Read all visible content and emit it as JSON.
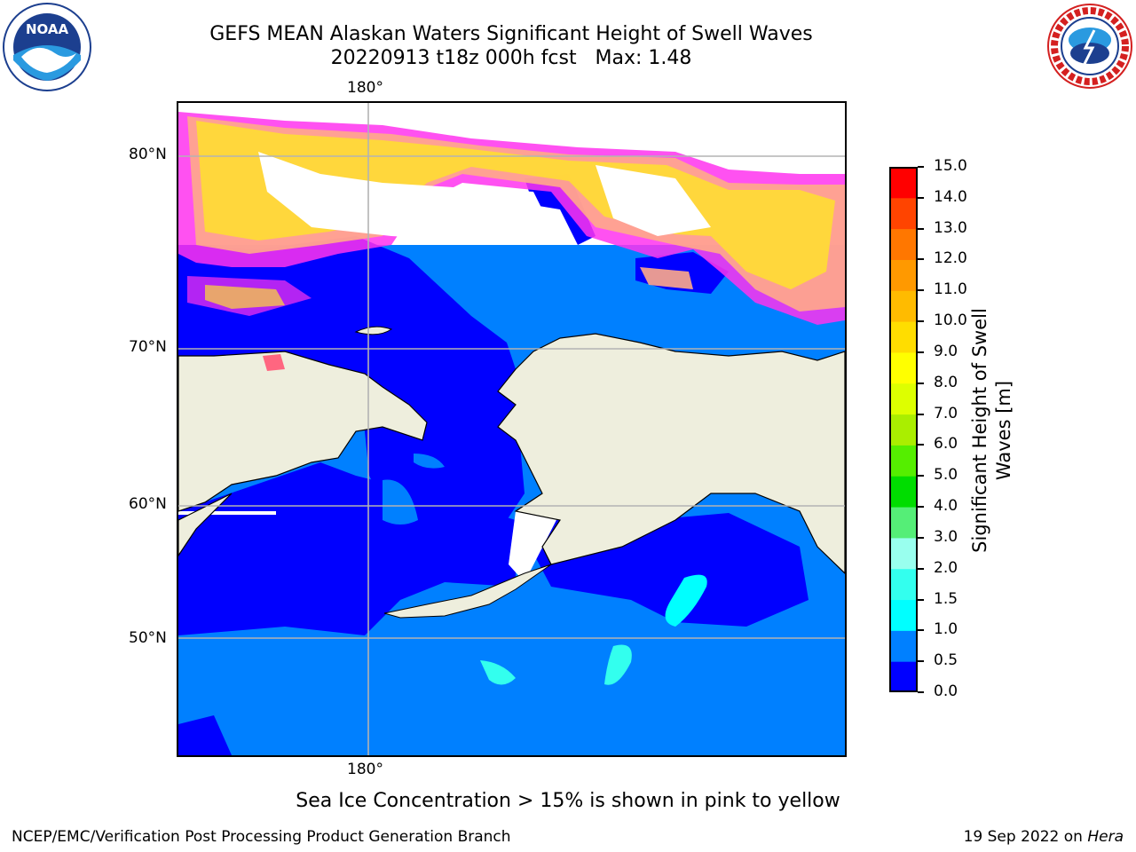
{
  "title": {
    "line1": "GEFS MEAN Alaskan Waters Significant Height of Swell Waves",
    "line2": "20220913 t18z 000h fcst   Max: 1.48"
  },
  "logos": {
    "left": "noaa-logo",
    "right": "national-weather-service-logo",
    "right_text": "NATIONAL WEATHER SERVICE"
  },
  "map": {
    "lon_labels": [
      "180°",
      "180°"
    ],
    "lat_labels": [
      "80°N",
      "70°N",
      "60°N",
      "50°N"
    ],
    "colors": {
      "land": "#eeeedd",
      "ice_low": "#ff33ee",
      "ice_mid": "#ffaa88",
      "ice_high": "#ffdd33",
      "gridline": "#b3b3b3"
    }
  },
  "colorbar": {
    "label": "Significant Height of Swell Waves [m]",
    "ticks": [
      "0.0",
      "0.5",
      "1.0",
      "1.5",
      "2.0",
      "3.0",
      "4.0",
      "5.0",
      "6.0",
      "7.0",
      "8.0",
      "9.0",
      "10.0",
      "11.0",
      "12.0",
      "13.0",
      "14.0",
      "15.0"
    ],
    "colors": [
      "#0000ff",
      "#0080ff",
      "#00ffff",
      "#33ffee",
      "#99ffee",
      "#55ee77",
      "#00dd00",
      "#55ee00",
      "#aaee00",
      "#ddff00",
      "#ffff00",
      "#ffdd00",
      "#ffbb00",
      "#ff9900",
      "#ff7700",
      "#ff4400",
      "#ff0000"
    ]
  },
  "footer": {
    "note": "Sea Ice Concentration > 15% is shown in pink to yellow",
    "credit": "NCEP/EMC/Verification Post Processing Product Generation Branch",
    "date": "19 Sep 2022 on ",
    "host": "Hera"
  }
}
